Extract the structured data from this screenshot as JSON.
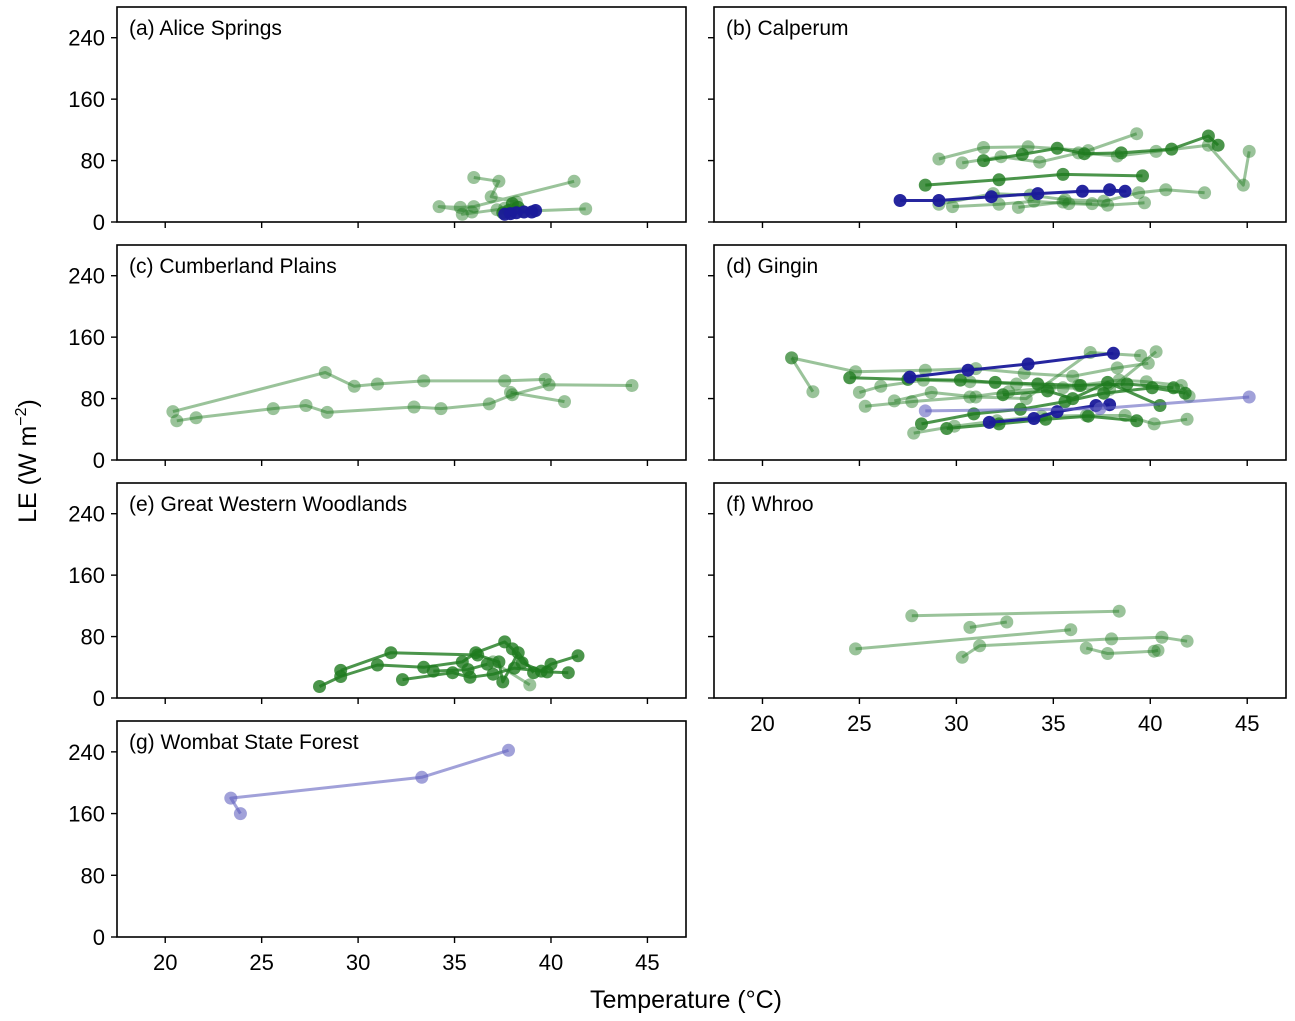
{
  "colors": {
    "green": "#1e7a1e",
    "blue": "#1a1a9a",
    "light_blue": "#6262c0"
  },
  "chart_data": [
    {
      "type": "line",
      "panel_label": "(a) Alice Springs",
      "series": [
        {
          "color": "green",
          "alpha": 0.45,
          "x": [
            36.0,
            37.3,
            36.9,
            38.2,
            37.6,
            39.1,
            37.2,
            35.4,
            35.9,
            34.2,
            35.3,
            36.0,
            41.2
          ],
          "y": [
            58,
            53,
            33,
            26,
            18,
            14,
            16,
            10,
            13,
            20,
            19,
            20,
            53
          ]
        },
        {
          "color": "green",
          "alpha": 0.45,
          "x": [
            41.8,
            38.5,
            37.9
          ],
          "y": [
            17,
            14,
            12
          ]
        },
        {
          "color": "green",
          "alpha": 0.8,
          "x": [
            38.0,
            38.3,
            37.8,
            37.5
          ],
          "y": [
            24,
            19,
            15,
            12
          ]
        },
        {
          "color": "blue",
          "alpha": 0.95,
          "x": [
            37.6,
            37.9,
            38.2,
            38.6,
            39.2,
            39.0
          ],
          "y": [
            10,
            11,
            12,
            13,
            15,
            13
          ]
        }
      ]
    },
    {
      "type": "line",
      "panel_label": "(b) Calperum",
      "series": [
        {
          "color": "green",
          "alpha": 0.45,
          "x": [
            29.1,
            31.4,
            33.7,
            36.8,
            39.3
          ],
          "y": [
            82,
            97,
            98,
            93,
            115
          ]
        },
        {
          "color": "green",
          "alpha": 0.45,
          "x": [
            30.3,
            32.3,
            34.3,
            36.3,
            38.3,
            40.3,
            43.0,
            44.8,
            45.1
          ],
          "y": [
            77,
            85,
            78,
            90,
            86,
            92,
            100,
            48,
            92
          ]
        },
        {
          "color": "green",
          "alpha": 0.45,
          "x": [
            29.1,
            31.9,
            33.8,
            35.6,
            37.6,
            39.4,
            40.8,
            42.8
          ],
          "y": [
            23,
            37,
            35,
            29,
            27,
            38,
            42,
            38
          ]
        },
        {
          "color": "green",
          "alpha": 0.45,
          "x": [
            29.8,
            32.2,
            34.0,
            35.8,
            37.8,
            39.7
          ],
          "y": [
            20,
            23,
            27,
            24,
            22,
            25
          ]
        },
        {
          "color": "green",
          "alpha": 0.45,
          "x": [
            33.2,
            35.5,
            37.0
          ],
          "y": [
            19,
            26,
            24
          ]
        },
        {
          "color": "green",
          "alpha": 0.8,
          "x": [
            31.4,
            33.4,
            35.2,
            36.6,
            38.5,
            41.1,
            43.0,
            43.5
          ],
          "y": [
            80,
            88,
            96,
            89,
            90,
            95,
            112,
            100
          ]
        },
        {
          "color": "green",
          "alpha": 0.8,
          "x": [
            28.4,
            32.2,
            35.5,
            39.6
          ],
          "y": [
            48,
            55,
            62,
            60
          ]
        },
        {
          "color": "blue",
          "alpha": 0.95,
          "x": [
            27.1,
            29.1,
            31.8,
            34.2,
            36.5,
            38.7,
            37.9
          ],
          "y": [
            28,
            28,
            33,
            37,
            40,
            40,
            42
          ]
        }
      ]
    },
    {
      "type": "line",
      "panel_label": "(c) Cumberland Plains",
      "series": [
        {
          "color": "green",
          "alpha": 0.45,
          "x": [
            20.4,
            28.3,
            29.8,
            31.0,
            33.4,
            37.6,
            39.7
          ],
          "y": [
            63,
            114,
            96,
            99,
            103,
            103,
            105
          ]
        },
        {
          "color": "green",
          "alpha": 0.45,
          "x": [
            20.6,
            21.6,
            25.6,
            27.3,
            28.4,
            32.9,
            34.3,
            36.8,
            38.0,
            39.9,
            44.2
          ],
          "y": [
            51,
            55,
            67,
            71,
            62,
            69,
            67,
            73,
            85,
            98,
            97
          ]
        },
        {
          "color": "green",
          "alpha": 0.45,
          "x": [
            37.9,
            40.7
          ],
          "y": [
            88,
            76
          ]
        }
      ]
    },
    {
      "type": "line",
      "panel_label": "(d) Gingin",
      "series": [
        {
          "color": "green",
          "alpha": 0.45,
          "x": [
            21.5,
            22.6
          ],
          "y": [
            133,
            89
          ]
        },
        {
          "color": "green",
          "alpha": 0.45,
          "x": [
            21.5,
            24.8,
            28.4,
            31.0,
            33.5,
            36.0,
            38.3,
            39.9
          ],
          "y": [
            133,
            115,
            117,
            119,
            113,
            109,
            120,
            126
          ]
        },
        {
          "color": "green",
          "alpha": 0.45,
          "x": [
            25.3,
            27.7,
            30.7,
            32.7,
            34.8,
            36.3,
            38.4,
            39.8,
            41.6,
            42.0
          ],
          "y": [
            70,
            76,
            82,
            89,
            94,
            97,
            104,
            102,
            97,
            83
          ]
        },
        {
          "color": "green",
          "alpha": 0.45,
          "x": [
            27.8,
            29.9,
            32.1,
            34.4,
            36.7,
            38.7,
            40.2,
            41.9
          ],
          "y": [
            35,
            44,
            51,
            57,
            58,
            58,
            47,
            53
          ]
        },
        {
          "color": "green",
          "alpha": 0.45,
          "x": [
            25.0,
            26.1,
            28.3,
            30.7,
            33.1,
            35.5,
            37.9,
            40.3
          ],
          "y": [
            88,
            96,
            104,
            102,
            99,
            94,
            92,
            141
          ]
        },
        {
          "color": "green",
          "alpha": 0.45,
          "x": [
            26.8,
            28.7,
            31.0,
            33.6,
            36.9,
            39.5
          ],
          "y": [
            77,
            88,
            82,
            80,
            140,
            136
          ]
        },
        {
          "color": "green",
          "alpha": 0.8,
          "x": [
            24.5,
            27.5,
            30.2,
            32.0,
            34.2,
            36.4,
            38.8,
            41.2
          ],
          "y": [
            107,
            105,
            104,
            101,
            99,
            97,
            99,
            94
          ]
        },
        {
          "color": "green",
          "alpha": 0.8,
          "x": [
            28.2,
            30.9,
            33.3,
            35.6,
            37.6,
            40.1,
            41.8
          ],
          "y": [
            47,
            60,
            66,
            76,
            87,
            94,
            87
          ]
        },
        {
          "color": "green",
          "alpha": 0.8,
          "x": [
            29.5,
            32.2,
            34.6,
            36.8,
            39.3
          ],
          "y": [
            41,
            47,
            53,
            57,
            51
          ]
        },
        {
          "color": "green",
          "alpha": 0.8,
          "x": [
            32.4,
            34.7,
            36.0,
            37.8,
            40.5
          ],
          "y": [
            85,
            90,
            80,
            101,
            71
          ]
        },
        {
          "color": "blue",
          "alpha": 0.95,
          "x": [
            27.6,
            30.6,
            33.7,
            38.1
          ],
          "y": [
            108,
            117,
            125,
            139
          ]
        },
        {
          "color": "blue",
          "alpha": 0.95,
          "x": [
            31.7,
            34.0,
            35.2,
            37.2,
            37.9
          ],
          "y": [
            49,
            54,
            63,
            71,
            72
          ]
        },
        {
          "color": "light_blue",
          "alpha": 0.6,
          "x": [
            28.4,
            37.4,
            45.1
          ],
          "y": [
            64,
            67,
            82
          ]
        }
      ]
    },
    {
      "type": "line",
      "panel_label": "(e) Great Western Woodlands",
      "series": [
        {
          "color": "green",
          "alpha": 0.8,
          "x": [
            28.0,
            29.1,
            31.0,
            33.4,
            35.4,
            36.1,
            37.6,
            38.0,
            38.5,
            39.5,
            40.0,
            41.4
          ],
          "y": [
            15,
            28,
            43,
            40,
            47,
            59,
            73,
            64,
            46,
            35,
            44,
            55
          ]
        },
        {
          "color": "green",
          "alpha": 0.8,
          "x": [
            32.3,
            34.9,
            35.8,
            37.0,
            38.1,
            39.8,
            40.9
          ],
          "y": [
            24,
            33,
            27,
            31,
            39,
            34,
            33
          ]
        },
        {
          "color": "green",
          "alpha": 0.8,
          "x": [
            29.1,
            31.7,
            36.2,
            37.3,
            37.5,
            38.3,
            39.1
          ],
          "y": [
            36,
            59,
            56,
            47,
            21,
            59,
            33
          ]
        },
        {
          "color": "green",
          "alpha": 0.8,
          "x": [
            33.9,
            35.7,
            36.7
          ],
          "y": [
            35,
            37,
            44
          ]
        },
        {
          "color": "green",
          "alpha": 0.45,
          "x": [
            37.0,
            38.9
          ],
          "y": [
            47,
            17
          ]
        }
      ]
    },
    {
      "type": "line",
      "panel_label": "(f) Whroo",
      "series": [
        {
          "color": "green",
          "alpha": 0.45,
          "x": [
            27.7,
            38.4
          ],
          "y": [
            107,
            113
          ]
        },
        {
          "color": "green",
          "alpha": 0.45,
          "x": [
            30.7,
            32.6
          ],
          "y": [
            92,
            99
          ]
        },
        {
          "color": "green",
          "alpha": 0.45,
          "x": [
            24.8,
            35.9
          ],
          "y": [
            64,
            89
          ]
        },
        {
          "color": "green",
          "alpha": 0.45,
          "x": [
            30.3,
            31.2,
            38.0,
            40.6,
            41.9
          ],
          "y": [
            53,
            68,
            77,
            79,
            74
          ]
        },
        {
          "color": "green",
          "alpha": 0.45,
          "x": [
            36.7,
            37.8,
            40.2,
            40.4
          ],
          "y": [
            65,
            58,
            61,
            62
          ]
        }
      ]
    },
    {
      "type": "line",
      "panel_label": "(g) Wombat State Forest",
      "series": [
        {
          "color": "light_blue",
          "alpha": 0.6,
          "x": [
            23.9,
            23.4,
            33.3,
            37.8
          ],
          "y": [
            160,
            180,
            207,
            242
          ]
        }
      ]
    }
  ],
  "axes": {
    "xlabel": "Temperature (°C)",
    "ylabel": "LE (W m",
    "ylabel_exponent": "−2",
    "ylabel_close": ")",
    "xlim": [
      17.5,
      47
    ],
    "ylim": [
      0,
      280
    ],
    "xticks": [
      20,
      25,
      30,
      35,
      40,
      45
    ],
    "yticks": [
      0,
      80,
      160,
      240
    ],
    "sharex": true,
    "sharey": true
  }
}
